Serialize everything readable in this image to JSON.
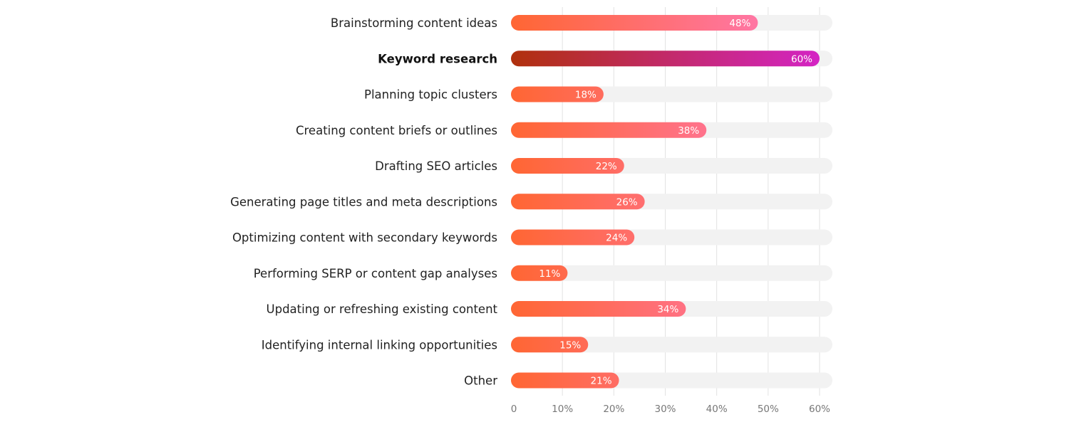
{
  "chart_data": {
    "type": "bar",
    "orientation": "horizontal",
    "categories": [
      "Brainstorming content ideas",
      "Keyword research",
      "Planning topic clusters",
      "Creating content briefs or outlines",
      "Drafting SEO articles",
      "Generating page titles and meta descriptions",
      "Optimizing content with secondary keywords",
      "Performing SERP or content gap analyses",
      "Updating or refreshing existing content",
      "Identifying internal linking opportunities",
      "Other"
    ],
    "values": [
      48,
      60,
      18,
      38,
      22,
      26,
      24,
      11,
      34,
      15,
      21
    ],
    "value_labels": [
      "48%",
      "60%",
      "18%",
      "38%",
      "22%",
      "26%",
      "24%",
      "11%",
      "34%",
      "15%",
      "21%"
    ],
    "highlighted_category": "Keyword research",
    "xlim": [
      0,
      60
    ],
    "xticks": [
      "0",
      "10%",
      "20%",
      "30%",
      "40%",
      "50%",
      "60%"
    ],
    "grid": true,
    "title": "",
    "xlabel": "",
    "ylabel": "",
    "colors": {
      "bar_start": "#ff6633",
      "bar_end": "#ff7ac0",
      "highlight_start": "#b0300c",
      "highlight_end": "#d424c4",
      "track": "#f2f2f2",
      "grid": "#e2e2e2"
    }
  }
}
